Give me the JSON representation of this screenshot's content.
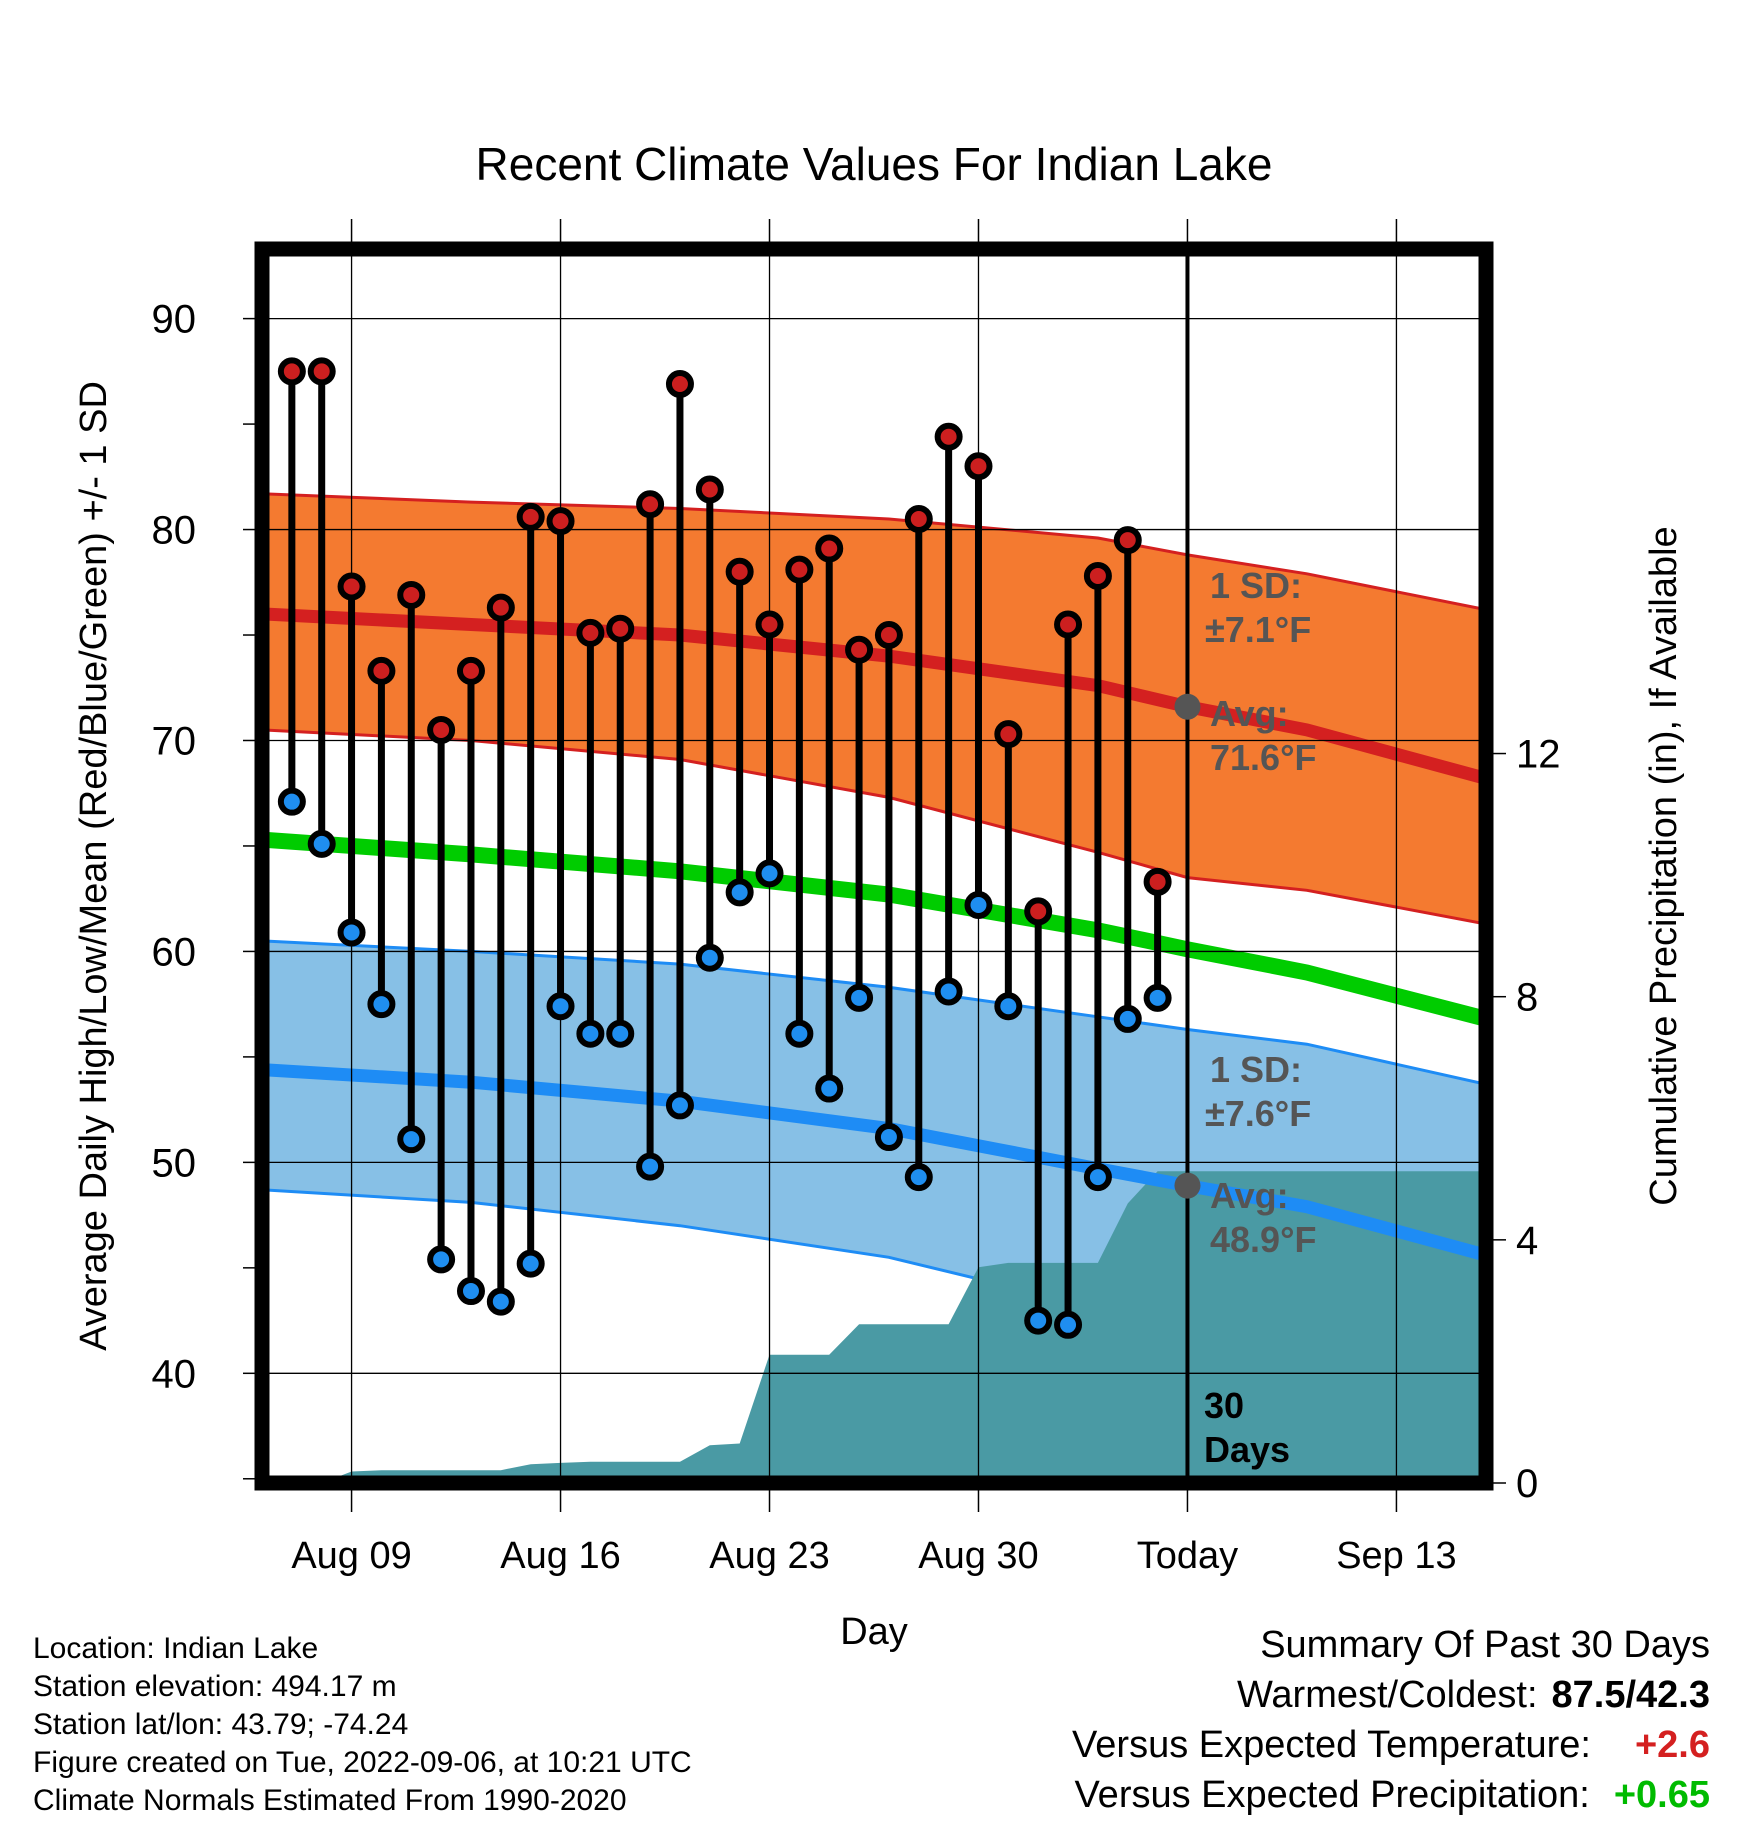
{
  "chart_data": {
    "type": "line",
    "title": "Recent Climate Values For Indian Lake",
    "xlabel": "Day",
    "ylabel": "Average Daily High/Low/Mean (Red/Blue/Green) +/- 1 SD",
    "y2label": "Cumulative Precipitation (in), If Available",
    "xlim": [
      "2022-08-06",
      "2022-09-16"
    ],
    "ylim": [
      34.8,
      93.3
    ],
    "y2lim": [
      0,
      20.3
    ],
    "y_ticks": [
      40,
      50,
      60,
      70,
      80,
      90
    ],
    "y2_ticks": [
      0,
      4,
      8,
      12
    ],
    "x_ticks": [
      {
        "date": "2022-08-09",
        "label": "Aug 09"
      },
      {
        "date": "2022-08-16",
        "label": "Aug 16"
      },
      {
        "date": "2022-08-23",
        "label": "Aug 23"
      },
      {
        "date": "2022-08-30",
        "label": "Aug 30"
      },
      {
        "date": "2022-09-06",
        "label": "Today"
      },
      {
        "date": "2022-09-13",
        "label": "Sep 13"
      }
    ],
    "grid": true,
    "today": "2022-09-06",
    "today_label": [
      "30",
      "Days"
    ],
    "daily": {
      "dates": [
        "2022-08-07",
        "2022-08-08",
        "2022-08-09",
        "2022-08-10",
        "2022-08-11",
        "2022-08-12",
        "2022-08-13",
        "2022-08-14",
        "2022-08-15",
        "2022-08-16",
        "2022-08-17",
        "2022-08-18",
        "2022-08-19",
        "2022-08-20",
        "2022-08-21",
        "2022-08-22",
        "2022-08-23",
        "2022-08-24",
        "2022-08-25",
        "2022-08-26",
        "2022-08-27",
        "2022-08-28",
        "2022-08-29",
        "2022-08-30",
        "2022-08-31",
        "2022-09-01",
        "2022-09-02",
        "2022-09-03",
        "2022-09-04",
        "2022-09-05"
      ],
      "high": [
        87.5,
        87.5,
        77.3,
        73.3,
        76.9,
        70.5,
        73.3,
        76.3,
        80.6,
        80.4,
        75.1,
        75.3,
        81.2,
        86.9,
        81.9,
        78.0,
        75.5,
        78.1,
        79.1,
        74.3,
        75.0,
        80.5,
        84.4,
        83.0,
        70.3,
        61.9,
        75.5,
        77.8,
        79.5,
        63.3
      ],
      "low": [
        67.1,
        65.1,
        60.9,
        57.5,
        51.1,
        45.4,
        43.9,
        43.4,
        45.2,
        57.4,
        56.1,
        56.1,
        49.8,
        52.7,
        59.7,
        62.8,
        63.7,
        56.1,
        53.5,
        57.8,
        51.2,
        49.3,
        58.1,
        62.2,
        57.4,
        42.5,
        42.3,
        49.3,
        56.8,
        57.8
      ]
    },
    "normals": {
      "dates": [
        "2022-08-06",
        "2022-08-13",
        "2022-08-20",
        "2022-08-27",
        "2022-09-03",
        "2022-09-06",
        "2022-09-10",
        "2022-09-16"
      ],
      "high_mean": [
        76.0,
        75.5,
        75.0,
        74.0,
        72.6,
        71.6,
        70.5,
        68.2
      ],
      "high_sd_upper": [
        81.7,
        81.3,
        81.0,
        80.5,
        79.6,
        78.8,
        77.9,
        76.2
      ],
      "high_sd_lower": [
        70.5,
        70.0,
        69.1,
        67.3,
        64.7,
        63.5,
        62.9,
        61.3
      ],
      "mean": [
        65.3,
        64.6,
        63.8,
        62.7,
        61.0,
        60.1,
        59.0,
        56.8
      ],
      "low_mean": [
        54.4,
        53.8,
        52.9,
        51.6,
        49.7,
        48.9,
        47.9,
        45.6
      ],
      "low_sd_upper": [
        60.5,
        60.0,
        59.4,
        58.3,
        56.9,
        56.3,
        55.6,
        53.7
      ],
      "low_sd_lower": [
        48.7,
        48.1,
        47.0,
        45.5,
        43.1,
        42.3,
        41.3,
        38.9
      ]
    },
    "high_sd_label": "1 SD:",
    "high_sd_value": "±7.1°F",
    "high_avg_label": "Avg:",
    "high_avg_value": "71.6°F",
    "low_sd_label": "1 SD:",
    "low_sd_value": "±7.6°F",
    "low_avg_label": "Avg:",
    "low_avg_value": "48.9°F",
    "precip": {
      "dates": [
        "2022-08-08",
        "2022-08-09",
        "2022-08-10",
        "2022-08-11",
        "2022-08-12",
        "2022-08-13",
        "2022-08-14",
        "2022-08-15",
        "2022-08-16",
        "2022-08-17",
        "2022-08-18",
        "2022-08-19",
        "2022-08-20",
        "2022-08-21",
        "2022-08-22",
        "2022-08-23",
        "2022-08-24",
        "2022-08-25",
        "2022-08-26",
        "2022-08-27",
        "2022-08-28",
        "2022-08-29",
        "2022-08-30",
        "2022-08-31",
        "2022-09-01",
        "2022-09-02",
        "2022-09-03",
        "2022-09-04",
        "2022-09-05",
        "2022-09-06",
        "2022-09-16"
      ],
      "cumulative": [
        0.0,
        0.19,
        0.21,
        0.21,
        0.21,
        0.21,
        0.21,
        0.31,
        0.33,
        0.35,
        0.35,
        0.35,
        0.35,
        0.62,
        0.65,
        2.11,
        2.11,
        2.11,
        2.61,
        2.61,
        2.61,
        2.61,
        3.55,
        3.62,
        3.62,
        3.62,
        3.62,
        4.6,
        5.13,
        5.13,
        5.13
      ]
    },
    "colors": {
      "high_band": "#f47a30",
      "high_line": "#d42020",
      "mean_line": "#00cc00",
      "low_band": "#87c0e6",
      "low_line": "#1e8cf5",
      "precip": "#4a9aa4",
      "high_dot": "#cc1f1f",
      "low_dot": "#1f8ef0",
      "annotation": "#555555"
    }
  },
  "footer": {
    "location": "Location: Indian Lake",
    "elevation": "Station elevation: 494.17 m",
    "latlon": "Station lat/lon: 43.79; -74.24",
    "created": "Figure created on Tue, 2022-09-06, at 10:21 UTC",
    "normals": "Climate Normals Estimated From 1990-2020"
  },
  "summary": {
    "title": "Summary Of Past 30 Days",
    "warm_cold_label": "Warmest/Coldest:",
    "warm_cold_value": "87.5/42.3",
    "temp_label": "Versus Expected Temperature:",
    "temp_value": "+2.6",
    "temp_color": "#d42020",
    "precip_label": "Versus Expected Precipitation:",
    "precip_value": "+0.65",
    "precip_color": "#00bb00"
  }
}
